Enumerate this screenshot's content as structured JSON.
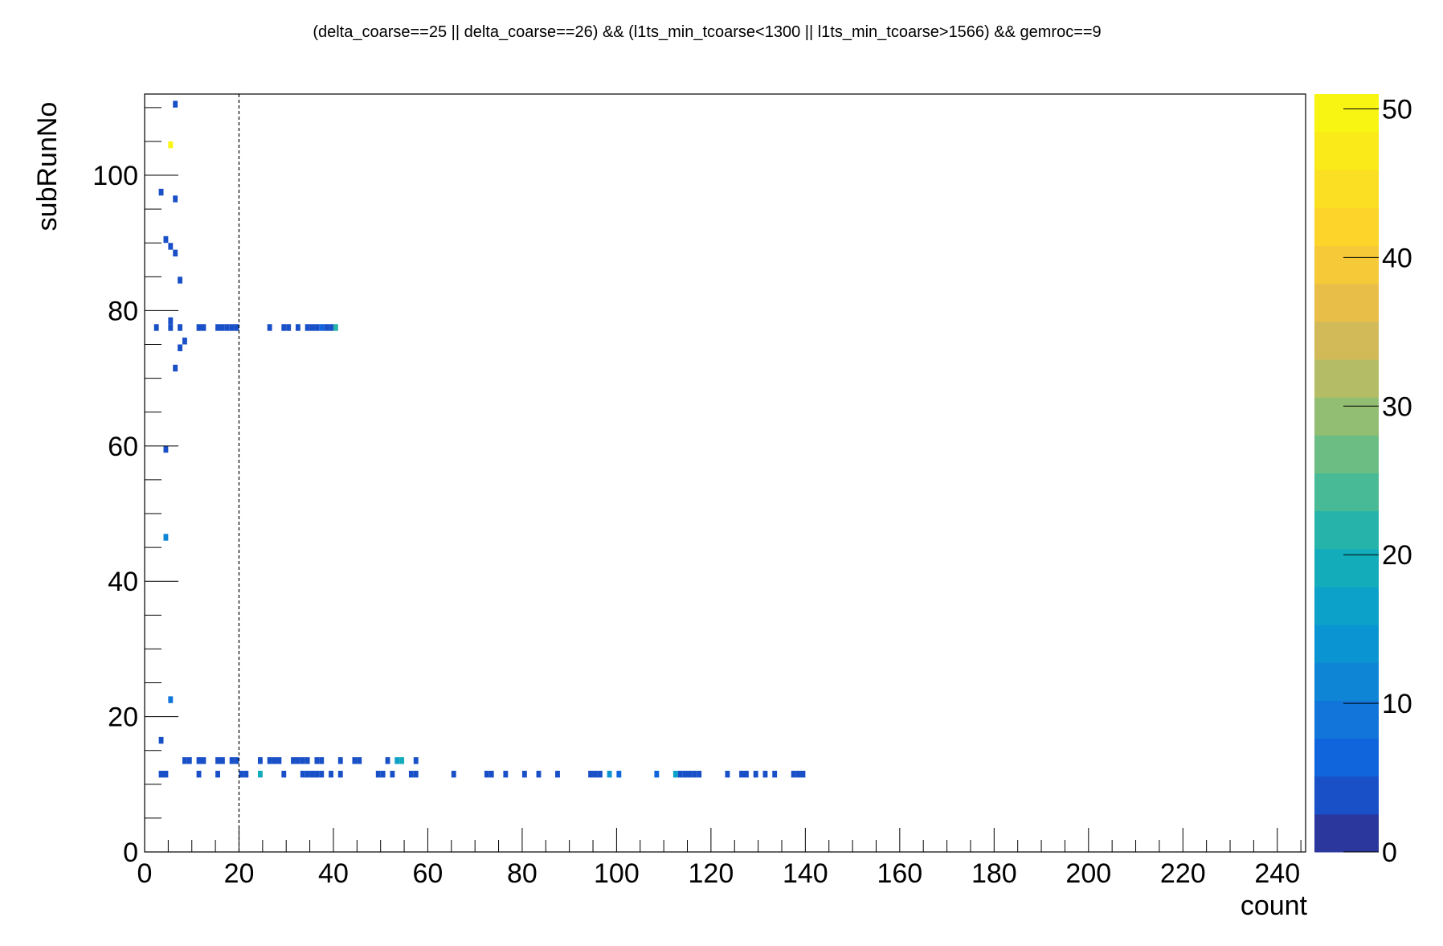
{
  "chart_data": {
    "type": "heatmap",
    "title": "(delta_coarse==25 || delta_coarse==26) && (l1ts_min_tcoarse<1300 || l1ts_min_tcoarse>1566) && gemroc==9",
    "xlabel": "count",
    "ylabel": "subRunNo",
    "xlim": [
      0,
      246
    ],
    "ylim": [
      0,
      112
    ],
    "xticks": [
      0,
      20,
      40,
      60,
      80,
      100,
      120,
      140,
      160,
      180,
      200,
      220,
      240
    ],
    "yticks": [
      0,
      20,
      40,
      60,
      80,
      100
    ],
    "zlim": [
      0,
      51
    ],
    "zticks": [
      0,
      10,
      20,
      30,
      40,
      50
    ],
    "grid": false,
    "reference_line": {
      "axis": "x",
      "value": 20,
      "style": "dashed"
    },
    "bin_width": {
      "x": 1,
      "y": 1
    },
    "cells": [
      [
        6,
        110,
        4
      ],
      [
        5,
        104,
        51
      ],
      [
        3,
        97,
        3
      ],
      [
        6,
        96,
        3
      ],
      [
        4,
        90,
        3
      ],
      [
        5,
        89,
        4
      ],
      [
        6,
        88,
        3
      ],
      [
        7,
        84,
        4
      ],
      [
        2,
        77,
        4
      ],
      [
        5,
        78,
        3
      ],
      [
        5,
        77,
        3
      ],
      [
        7,
        77,
        4
      ],
      [
        11,
        77,
        3
      ],
      [
        12,
        77,
        3
      ],
      [
        15,
        77,
        3
      ],
      [
        16,
        77,
        3
      ],
      [
        17,
        77,
        3
      ],
      [
        18,
        77,
        3
      ],
      [
        19,
        77,
        3
      ],
      [
        26,
        77,
        4
      ],
      [
        29,
        77,
        4
      ],
      [
        30,
        77,
        4
      ],
      [
        32,
        77,
        4
      ],
      [
        34,
        77,
        5
      ],
      [
        35,
        77,
        5
      ],
      [
        36,
        77,
        4
      ],
      [
        37,
        77,
        6
      ],
      [
        38,
        77,
        4
      ],
      [
        39,
        77,
        4
      ],
      [
        40,
        77,
        22
      ],
      [
        8,
        75,
        3
      ],
      [
        7,
        74,
        3
      ],
      [
        6,
        71,
        3
      ],
      [
        4,
        59,
        3
      ],
      [
        4,
        46,
        12
      ],
      [
        5,
        22,
        10
      ],
      [
        3,
        16,
        5
      ],
      [
        8,
        13,
        3
      ],
      [
        9,
        13,
        3
      ],
      [
        11,
        13,
        3
      ],
      [
        12,
        13,
        3
      ],
      [
        15,
        13,
        3
      ],
      [
        16,
        13,
        3
      ],
      [
        18,
        13,
        3
      ],
      [
        19,
        13,
        3
      ],
      [
        24,
        13,
        5
      ],
      [
        26,
        13,
        3
      ],
      [
        27,
        13,
        3
      ],
      [
        28,
        13,
        3
      ],
      [
        31,
        13,
        3
      ],
      [
        32,
        13,
        3
      ],
      [
        33,
        13,
        3
      ],
      [
        34,
        13,
        3
      ],
      [
        36,
        13,
        3
      ],
      [
        37,
        13,
        3
      ],
      [
        41,
        13,
        4
      ],
      [
        44,
        13,
        3
      ],
      [
        45,
        13,
        3
      ],
      [
        51,
        13,
        4
      ],
      [
        53,
        13,
        16
      ],
      [
        54,
        13,
        20
      ],
      [
        57,
        13,
        3
      ],
      [
        3,
        11,
        3
      ],
      [
        4,
        11,
        3
      ],
      [
        11,
        11,
        3
      ],
      [
        15,
        11,
        3
      ],
      [
        20,
        11,
        3
      ],
      [
        21,
        11,
        3
      ],
      [
        24,
        11,
        18
      ],
      [
        29,
        11,
        3
      ],
      [
        33,
        11,
        3
      ],
      [
        34,
        11,
        3
      ],
      [
        35,
        11,
        3
      ],
      [
        36,
        11,
        3
      ],
      [
        37,
        11,
        3
      ],
      [
        39,
        11,
        3
      ],
      [
        41,
        11,
        3
      ],
      [
        49,
        11,
        3
      ],
      [
        50,
        11,
        3
      ],
      [
        52,
        11,
        3
      ],
      [
        56,
        11,
        3
      ],
      [
        57,
        11,
        3
      ],
      [
        65,
        11,
        3
      ],
      [
        72,
        11,
        3
      ],
      [
        73,
        11,
        3
      ],
      [
        76,
        11,
        3
      ],
      [
        80,
        11,
        3
      ],
      [
        83,
        11,
        3
      ],
      [
        87,
        11,
        3
      ],
      [
        94,
        11,
        3
      ],
      [
        95,
        11,
        3
      ],
      [
        96,
        11,
        3
      ],
      [
        98,
        11,
        13
      ],
      [
        100,
        11,
        6
      ],
      [
        108,
        11,
        6
      ],
      [
        112,
        11,
        16
      ],
      [
        113,
        11,
        3
      ],
      [
        114,
        11,
        5
      ],
      [
        115,
        11,
        4
      ],
      [
        116,
        11,
        4
      ],
      [
        117,
        11,
        4
      ],
      [
        123,
        11,
        5
      ],
      [
        126,
        11,
        4
      ],
      [
        127,
        11,
        4
      ],
      [
        129,
        11,
        4
      ],
      [
        131,
        11,
        4
      ],
      [
        133,
        11,
        4
      ],
      [
        137,
        11,
        4
      ],
      [
        138,
        11,
        4
      ],
      [
        139,
        11,
        4
      ]
    ]
  }
}
